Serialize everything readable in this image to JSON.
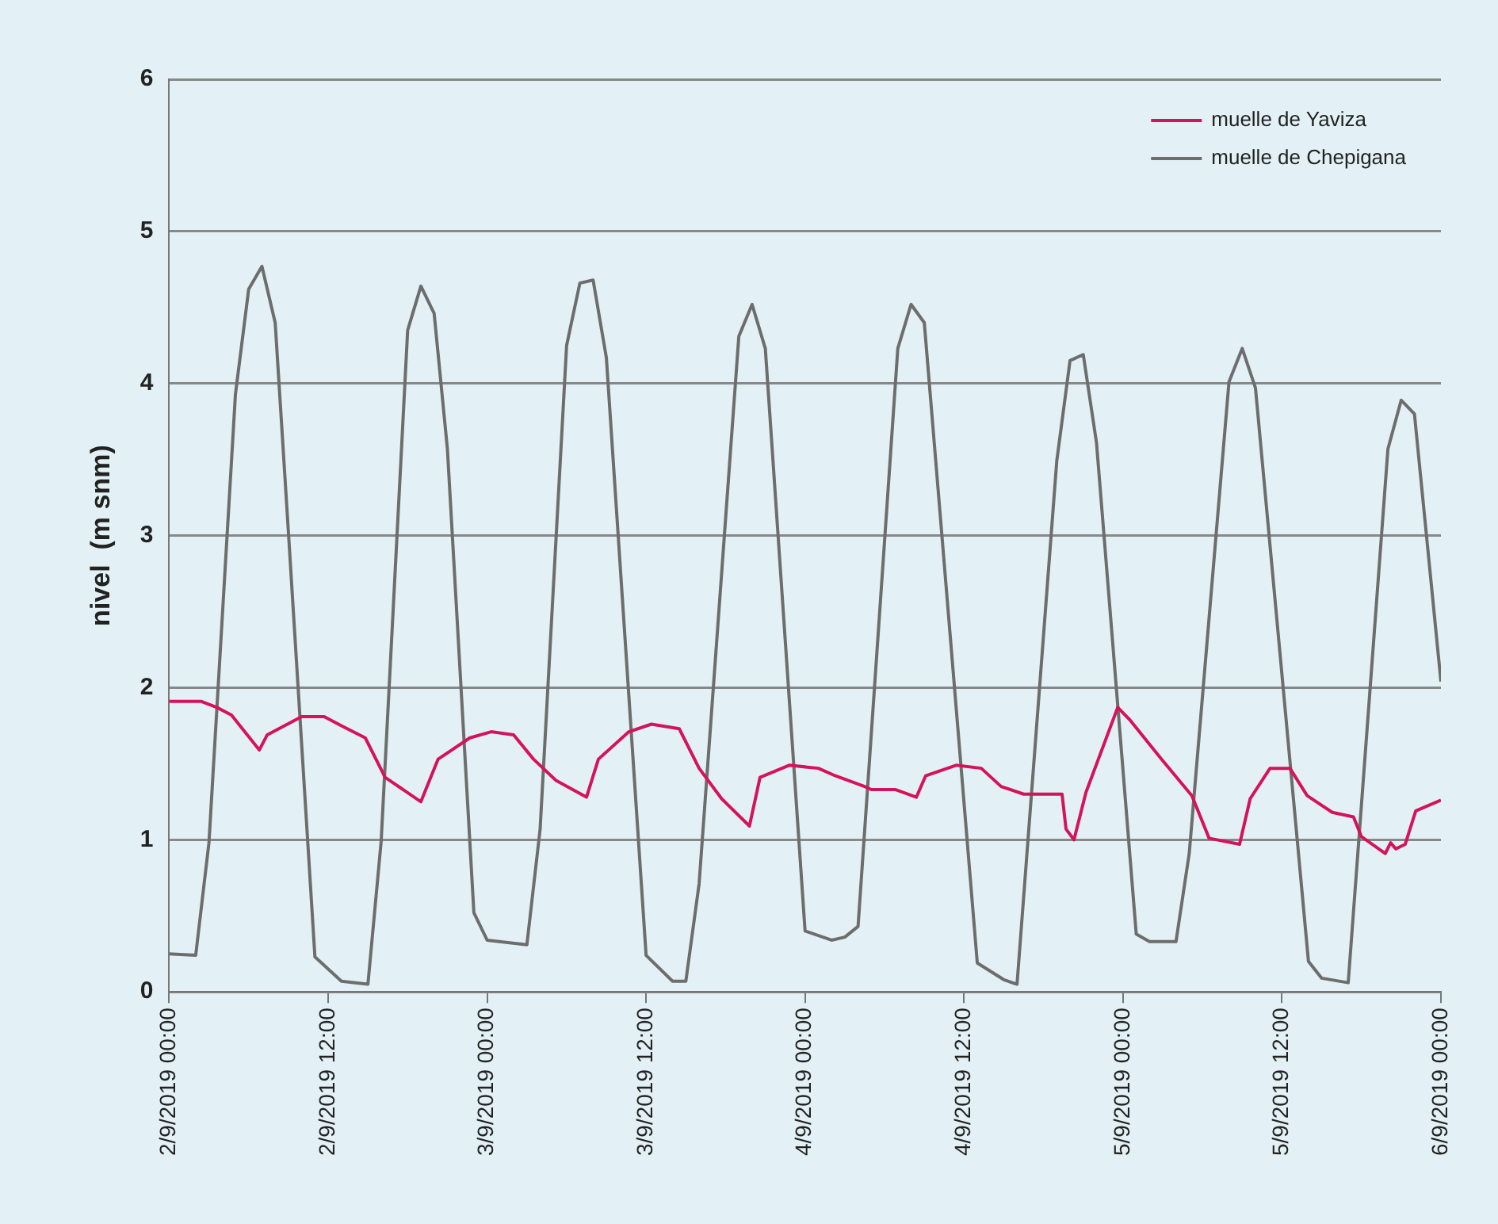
{
  "chart_data": {
    "type": "line",
    "ylabel": "nivel  (m snm)",
    "xlim": [
      "2019-09-02T00:00",
      "2019-09-06T00:00"
    ],
    "ylim": [
      0,
      6
    ],
    "xticks": [
      {
        "value": "2019-09-02T00:00",
        "label": "2/9/2019 00:00"
      },
      {
        "value": "2019-09-02T12:00",
        "label": "2/9/2019 12:00"
      },
      {
        "value": "2019-09-03T00:00",
        "label": "3/9/2019 00:00"
      },
      {
        "value": "2019-09-03T12:00",
        "label": "3/9/2019 12:00"
      },
      {
        "value": "2019-09-04T00:00",
        "label": "4/9/2019 00:00"
      },
      {
        "value": "2019-09-04T12:00",
        "label": "4/9/2019 12:00"
      },
      {
        "value": "2019-09-05T00:00",
        "label": "5/9/2019 00:00"
      },
      {
        "value": "2019-09-05T12:00",
        "label": "5/9/2019 12:00"
      },
      {
        "value": "2019-09-06T00:00",
        "label": "6/9/2019 00:00"
      }
    ],
    "yticks": [
      0,
      1,
      2,
      3,
      4,
      5,
      6
    ],
    "grid": "y",
    "legend": "top right",
    "marker": "none",
    "line_style": "solid",
    "series": [
      {
        "name": "muelle de Yaviza",
        "color": "#d4145a",
        "x": [
          "2019-09-02T00:00",
          "2019-09-02T02:24",
          "2019-09-02T03:36",
          "2019-09-02T04:42",
          "2019-09-02T06:48",
          "2019-09-02T07:24",
          "2019-09-02T10:00",
          "2019-09-02T11:42",
          "2019-09-02T13:00",
          "2019-09-02T14:48",
          "2019-09-02T16:18",
          "2019-09-02T19:00",
          "2019-09-02T20:18",
          "2019-09-02T22:42",
          "2019-09-03T00:18",
          "2019-09-03T02:00",
          "2019-09-03T03:30",
          "2019-09-03T05:12",
          "2019-09-03T07:30",
          "2019-09-03T08:24",
          "2019-09-03T10:42",
          "2019-09-03T12:24",
          "2019-09-03T14:30",
          "2019-09-03T16:00",
          "2019-09-03T17:42",
          "2019-09-03T19:48",
          "2019-09-03T20:36",
          "2019-09-03T22:48",
          "2019-09-04T01:00",
          "2019-09-04T02:18",
          "2019-09-04T04:30",
          "2019-09-04T05:00",
          "2019-09-04T06:48",
          "2019-09-04T08:24",
          "2019-09-04T09:06",
          "2019-09-04T11:24",
          "2019-09-04T13:18",
          "2019-09-04T14:48",
          "2019-09-04T16:30",
          "2019-09-04T19:24",
          "2019-09-04T19:42",
          "2019-09-04T20:18",
          "2019-09-04T21:12",
          "2019-09-04T23:36",
          "2019-09-05T00:30",
          "2019-09-05T02:54",
          "2019-09-05T05:12",
          "2019-09-05T06:30",
          "2019-09-05T08:48",
          "2019-09-05T09:36",
          "2019-09-05T11:06",
          "2019-09-05T12:36",
          "2019-09-05T13:54",
          "2019-09-05T15:48",
          "2019-09-05T17:24",
          "2019-09-05T18:00",
          "2019-09-05T19:48",
          "2019-09-05T20:12",
          "2019-09-05T20:36",
          "2019-09-05T21:18",
          "2019-09-05T22:06",
          "2019-09-06T00:00"
        ],
        "values": [
          1.91,
          1.91,
          1.87,
          1.82,
          1.59,
          1.69,
          1.81,
          1.81,
          1.75,
          1.67,
          1.41,
          1.25,
          1.53,
          1.67,
          1.71,
          1.69,
          1.53,
          1.39,
          1.28,
          1.53,
          1.71,
          1.76,
          1.73,
          1.47,
          1.27,
          1.09,
          1.41,
          1.49,
          1.47,
          1.42,
          1.35,
          1.33,
          1.33,
          1.28,
          1.42,
          1.49,
          1.47,
          1.35,
          1.3,
          1.3,
          1.07,
          1.0,
          1.31,
          1.87,
          1.79,
          1.53,
          1.29,
          1.01,
          0.97,
          1.27,
          1.47,
          1.47,
          1.29,
          1.18,
          1.15,
          1.02,
          0.91,
          0.98,
          0.94,
          0.97,
          1.19,
          1.26
        ]
      },
      {
        "name": "muelle de Chepigana",
        "color": "#6d6d6d",
        "x": [
          "2019-09-02T00:00",
          "2019-09-02T02:00",
          "2019-09-02T03:00",
          "2019-09-02T05:00",
          "2019-09-02T06:00",
          "2019-09-02T07:00",
          "2019-09-02T08:00",
          "2019-09-02T09:00",
          "2019-09-02T11:00",
          "2019-09-02T13:00",
          "2019-09-02T15:00",
          "2019-09-02T16:00",
          "2019-09-02T18:00",
          "2019-09-02T19:00",
          "2019-09-02T20:00",
          "2019-09-02T21:00",
          "2019-09-02T23:00",
          "2019-09-03T00:00",
          "2019-09-03T03:00",
          "2019-09-03T04:00",
          "2019-09-03T06:00",
          "2019-09-03T07:00",
          "2019-09-03T08:00",
          "2019-09-03T09:00",
          "2019-09-03T12:00",
          "2019-09-03T14:00",
          "2019-09-03T15:00",
          "2019-09-03T16:00",
          "2019-09-03T19:00",
          "2019-09-03T20:00",
          "2019-09-03T21:00",
          "2019-09-04T00:00",
          "2019-09-04T02:00",
          "2019-09-04T03:00",
          "2019-09-04T04:00",
          "2019-09-04T07:00",
          "2019-09-04T08:00",
          "2019-09-04T09:00",
          "2019-09-04T13:00",
          "2019-09-04T15:00",
          "2019-09-04T16:00",
          "2019-09-04T19:00",
          "2019-09-04T20:00",
          "2019-09-04T21:00",
          "2019-09-04T22:00",
          "2019-09-05T01:00",
          "2019-09-05T02:00",
          "2019-09-05T04:00",
          "2019-09-05T05:00",
          "2019-09-05T08:00",
          "2019-09-05T09:00",
          "2019-09-05T10:00",
          "2019-09-05T14:00",
          "2019-09-05T15:00",
          "2019-09-05T17:00",
          "2019-09-05T20:00",
          "2019-09-05T21:00",
          "2019-09-05T22:00",
          "2019-09-06T00:00"
        ],
        "values": [
          0.25,
          0.24,
          0.98,
          3.93,
          4.62,
          4.77,
          4.4,
          3.02,
          0.23,
          0.07,
          0.05,
          0.99,
          4.35,
          4.64,
          4.46,
          3.57,
          0.52,
          0.34,
          0.31,
          1.07,
          4.25,
          4.66,
          4.68,
          4.17,
          0.24,
          0.07,
          0.07,
          0.71,
          4.31,
          4.52,
          4.23,
          0.4,
          0.34,
          0.36,
          0.43,
          4.23,
          4.52,
          4.4,
          0.19,
          0.08,
          0.05,
          3.49,
          4.15,
          4.19,
          3.61,
          0.38,
          0.33,
          0.33,
          0.91,
          4.01,
          4.23,
          3.97,
          0.2,
          0.09,
          0.06,
          3.57,
          3.89,
          3.8,
          2.04
        ]
      }
    ]
  }
}
